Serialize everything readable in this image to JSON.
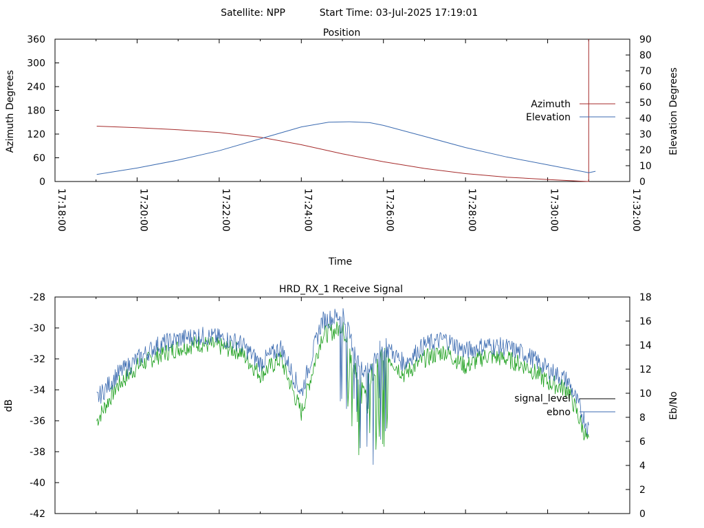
{
  "page": {
    "satellite_label": "Satellite: NPP",
    "start_time_label": "Start Time: 03-Jul-2025 17:19:01"
  },
  "colors": {
    "azimuth": "#a52a2a",
    "elevation": "#3a6ab0",
    "signal_level": "#000000",
    "ebno": "#3a6ab0",
    "green_trace": "#1a9e1a"
  },
  "chart_data": [
    {
      "type": "line",
      "title": "Position",
      "xlabel": "Time",
      "ylabel": "Azimuth Degrees",
      "y2label": "Elevation Degrees",
      "xlim": [
        "17:18:00",
        "17:32:00"
      ],
      "ylim": [
        0,
        360
      ],
      "y2lim": [
        0,
        90
      ],
      "xticks": [
        "17:18:00",
        "17:20:00",
        "17:22:00",
        "17:24:00",
        "17:26:00",
        "17:28:00",
        "17:30:00",
        "17:32:00"
      ],
      "yticks": [
        "0",
        "60",
        "120",
        "180",
        "240",
        "300",
        "360"
      ],
      "y2ticks": [
        "0",
        "10",
        "20",
        "30",
        "40",
        "50",
        "60",
        "70",
        "80",
        "90"
      ],
      "legend_position": "right",
      "series": [
        {
          "name": "Azimuth",
          "axis": "left",
          "x": [
            "17:19:01",
            "17:20:00",
            "17:21:00",
            "17:22:00",
            "17:23:00",
            "17:24:00",
            "17:25:00",
            "17:26:00",
            "17:27:00",
            "17:28:00",
            "17:29:00",
            "17:30:00",
            "17:30:45",
            "17:31:00"
          ],
          "y": [
            140,
            136,
            131,
            124,
            112,
            93,
            70,
            50,
            33,
            20,
            11,
            5,
            1,
            360
          ]
        },
        {
          "name": "Elevation",
          "axis": "right",
          "x": [
            "17:19:01",
            "17:20:00",
            "17:21:00",
            "17:22:00",
            "17:23:00",
            "17:24:00",
            "17:24:40",
            "17:25:10",
            "17:25:40",
            "17:26:00",
            "17:27:00",
            "17:28:00",
            "17:29:00",
            "17:30:00",
            "17:31:00",
            "17:31:10"
          ],
          "y": [
            4.5,
            8.5,
            13.5,
            19.5,
            27,
            34.5,
            37.5,
            37.8,
            37.2,
            35.5,
            28.5,
            21.5,
            15.5,
            10.5,
            5.5,
            6.5
          ]
        }
      ]
    },
    {
      "type": "line",
      "title": "HRD_RX_1 Receive Signal",
      "xlabel": "",
      "ylabel": "dB",
      "y2label": "Eb/No",
      "xlim": [
        "17:18:00",
        "17:32:00"
      ],
      "ylim": [
        -42,
        -28
      ],
      "y2lim": [
        0,
        18
      ],
      "yticks": [
        "-42",
        "-40",
        "-38",
        "-36",
        "-34",
        "-32",
        "-30",
        "-28"
      ],
      "y2ticks": [
        "0",
        "2",
        "4",
        "6",
        "8",
        "10",
        "12",
        "14",
        "16",
        "18"
      ],
      "legend_position": "right",
      "series": [
        {
          "name": "signal_level",
          "axis": "left",
          "x": [
            "17:19:01",
            "17:19:30",
            "17:20:00",
            "17:20:30",
            "17:21:00",
            "17:21:30",
            "17:22:00",
            "17:22:30",
            "17:23:00",
            "17:23:30",
            "17:24:00",
            "17:24:30",
            "17:25:00",
            "17:25:30",
            "17:26:00",
            "17:26:30",
            "17:27:00",
            "17:27:30",
            "17:28:00",
            "17:28:30",
            "17:29:00",
            "17:29:30",
            "17:30:00",
            "17:30:30",
            "17:31:00"
          ],
          "y": [
            -36.0,
            -33.8,
            -32.5,
            -31.8,
            -31.3,
            -31.0,
            -31.2,
            -31.5,
            -33.0,
            -32.0,
            -35.5,
            -30.5,
            -30.0,
            -34.0,
            -31.5,
            -33.0,
            -32.0,
            -31.5,
            -32.5,
            -31.8,
            -32.0,
            -32.5,
            -33.5,
            -34.0,
            -37.5
          ]
        },
        {
          "name": "ebno",
          "axis": "right",
          "x": [
            "17:19:01",
            "17:19:30",
            "17:20:00",
            "17:20:30",
            "17:21:00",
            "17:21:30",
            "17:22:00",
            "17:22:30",
            "17:23:00",
            "17:23:30",
            "17:24:00",
            "17:24:30",
            "17:25:00",
            "17:25:30",
            "17:26:00",
            "17:26:30",
            "17:27:00",
            "17:27:30",
            "17:28:00",
            "17:28:30",
            "17:29:00",
            "17:29:30",
            "17:30:00",
            "17:30:30",
            "17:31:00"
          ],
          "y": [
            9.5,
            11.5,
            12.8,
            14.0,
            14.5,
            14.8,
            14.6,
            14.2,
            12.5,
            13.8,
            10.0,
            16.0,
            16.5,
            11.5,
            14.0,
            12.5,
            14.0,
            14.5,
            13.5,
            14.0,
            13.8,
            13.2,
            12.0,
            11.0,
            7.0
          ]
        }
      ]
    }
  ]
}
